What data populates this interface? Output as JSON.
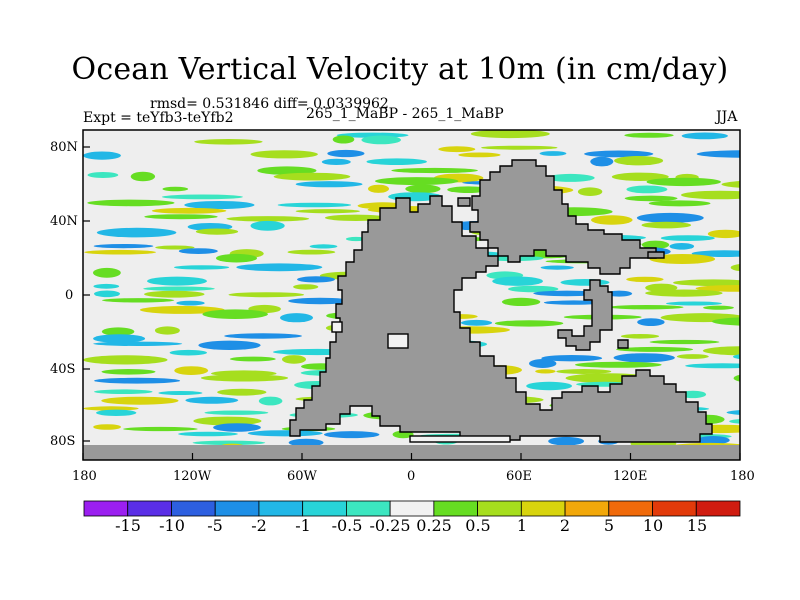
{
  "title": "Ocean Vertical Velocity at 10m (in cm/day)",
  "stats_line": "rmsd= 0.531846 diff= 0.0339962",
  "left_label": "Expt = teYfb3-teYfb2",
  "center_label": "265_1_MaBP - 265_1_MaBP",
  "season_label": "JJA",
  "x_ticks": [
    "180",
    "120W",
    "60W",
    "0",
    "60E",
    "120E",
    "180"
  ],
  "y_ticks": [
    "80N",
    "40N",
    "0",
    "40S",
    "80S"
  ],
  "colorbar": {
    "labels": [
      "-15",
      "-10",
      "-5",
      "-2",
      "-1",
      "-0.5",
      "-0.25",
      "0.25",
      "0.5",
      "1",
      "2",
      "5",
      "10",
      "15"
    ],
    "colors": [
      "#9b1ff0",
      "#5a2ee6",
      "#2d5fe0",
      "#1e8fe6",
      "#22b7e6",
      "#28d4d8",
      "#3ce6c0",
      "#f2f2f2",
      "#66dd22",
      "#a6de1e",
      "#d8d40e",
      "#f2a80a",
      "#f06a0a",
      "#e23a0a",
      "#d01c10"
    ]
  },
  "legend_colors": {
    "land": "#999999",
    "ocean_background": "#eeeeee",
    "coast": "#000000"
  }
}
